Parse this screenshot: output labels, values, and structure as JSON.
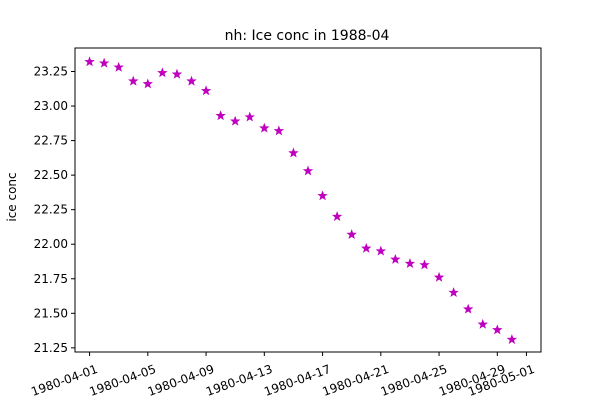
{
  "chart_data": {
    "type": "scatter",
    "title": "nh: Ice conc in 1988-04",
    "xlabel": "",
    "ylabel": "ice conc",
    "marker": "star",
    "color": "#bf00bf",
    "grid": false,
    "legend": false,
    "xlim": [
      "1980-03-31",
      "1980-05-02"
    ],
    "ylim": [
      21.22,
      23.42
    ],
    "xticks": [
      "1980-04-01",
      "1980-04-05",
      "1980-04-09",
      "1980-04-13",
      "1980-04-17",
      "1980-04-21",
      "1980-04-25",
      "1980-04-29",
      "1980-05-01"
    ],
    "yticks": [
      "21.25",
      "21.50",
      "21.75",
      "22.00",
      "22.25",
      "22.50",
      "22.75",
      "23.00",
      "23.25"
    ],
    "x": [
      "1980-04-01",
      "1980-04-02",
      "1980-04-03",
      "1980-04-04",
      "1980-04-05",
      "1980-04-06",
      "1980-04-07",
      "1980-04-08",
      "1980-04-09",
      "1980-04-10",
      "1980-04-11",
      "1980-04-12",
      "1980-04-13",
      "1980-04-14",
      "1980-04-15",
      "1980-04-16",
      "1980-04-17",
      "1980-04-18",
      "1980-04-19",
      "1980-04-20",
      "1980-04-21",
      "1980-04-22",
      "1980-04-23",
      "1980-04-24",
      "1980-04-25",
      "1980-04-26",
      "1980-04-27",
      "1980-04-28",
      "1980-04-29",
      "1980-04-30"
    ],
    "y": [
      23.32,
      23.31,
      23.28,
      23.18,
      23.16,
      23.24,
      23.23,
      23.18,
      23.11,
      22.93,
      22.89,
      22.92,
      22.84,
      22.82,
      22.66,
      22.53,
      22.35,
      22.2,
      22.07,
      21.97,
      21.95,
      21.89,
      21.86,
      21.85,
      21.76,
      21.65,
      21.53,
      21.42,
      21.38,
      21.31
    ]
  }
}
